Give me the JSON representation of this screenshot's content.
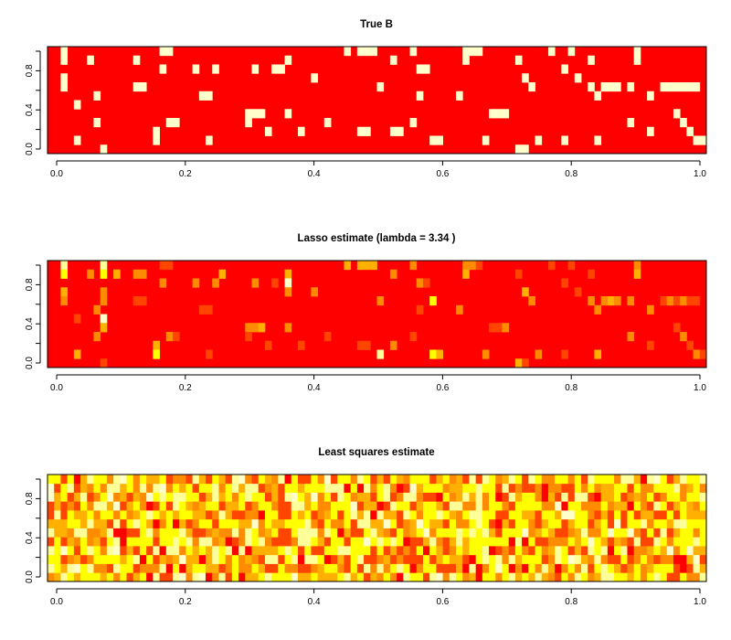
{
  "palette": {
    "red": "#ff0000",
    "orange_red": "#ff4500",
    "orange": "#ff8c00",
    "amber": "#ffb000",
    "yellow": "#ffff00",
    "light_yellow": "#ffff99",
    "cream": "#ffffcc"
  },
  "chart_data": [
    {
      "type": "heatmap",
      "title": "True B",
      "xlim": [
        0,
        1
      ],
      "ylim": [
        0,
        1
      ],
      "x_ticks": [
        "0.0",
        "0.2",
        "0.4",
        "0.6",
        "0.8",
        "1.0"
      ],
      "y_ticks": [
        "0.0",
        "0.4",
        "0.8"
      ],
      "grid": false,
      "color_scale": "heat (red = 0, cream = non-zero)",
      "grid_size": {
        "columns": 100,
        "rows": 12
      },
      "nonzero_cells": [
        [
          2,
          11
        ],
        [
          2,
          10
        ],
        [
          2,
          8
        ],
        [
          2,
          7
        ],
        [
          6,
          10
        ],
        [
          13,
          10
        ],
        [
          17,
          11
        ],
        [
          17,
          9
        ],
        [
          18,
          11
        ],
        [
          22,
          9
        ],
        [
          25,
          9
        ],
        [
          31,
          9
        ],
        [
          34,
          9
        ],
        [
          35,
          9
        ],
        [
          36,
          10
        ],
        [
          4,
          5
        ],
        [
          7,
          6
        ],
        [
          7,
          3
        ],
        [
          13,
          7
        ],
        [
          14,
          7
        ],
        [
          18,
          3
        ],
        [
          19,
          3
        ],
        [
          23,
          6
        ],
        [
          24,
          6
        ],
        [
          30,
          4
        ],
        [
          31,
          4
        ],
        [
          32,
          4
        ],
        [
          36,
          4
        ],
        [
          4,
          1
        ],
        [
          8,
          0
        ],
        [
          16,
          2
        ],
        [
          16,
          1
        ],
        [
          24,
          1
        ],
        [
          30,
          3
        ],
        [
          33,
          2
        ],
        [
          38,
          2
        ],
        [
          45,
          11
        ],
        [
          47,
          11
        ],
        [
          48,
          11
        ],
        [
          49,
          11
        ],
        [
          52,
          10
        ],
        [
          55,
          11
        ],
        [
          56,
          9
        ],
        [
          57,
          9
        ],
        [
          63,
          11
        ],
        [
          63,
          10
        ],
        [
          71,
          10
        ],
        [
          79,
          11
        ],
        [
          89,
          11
        ],
        [
          89,
          10
        ],
        [
          40,
          8
        ],
        [
          50,
          7
        ],
        [
          56,
          6
        ],
        [
          62,
          6
        ],
        [
          67,
          4
        ],
        [
          68,
          4
        ],
        [
          69,
          4
        ],
        [
          72,
          8
        ],
        [
          73,
          7
        ],
        [
          80,
          8
        ],
        [
          82,
          7
        ],
        [
          83,
          6
        ],
        [
          84,
          7
        ],
        [
          85,
          7
        ],
        [
          86,
          7
        ],
        [
          88,
          7
        ],
        [
          91,
          6
        ],
        [
          93,
          7
        ],
        [
          94,
          7
        ],
        [
          95,
          7
        ],
        [
          96,
          7
        ],
        [
          97,
          7
        ],
        [
          98,
          7
        ],
        [
          42,
          3
        ],
        [
          47,
          2
        ],
        [
          48,
          2
        ],
        [
          52,
          2
        ],
        [
          53,
          2
        ],
        [
          55,
          3
        ],
        [
          58,
          1
        ],
        [
          59,
          1
        ],
        [
          66,
          1
        ],
        [
          71,
          0
        ],
        [
          72,
          0
        ],
        [
          74,
          1
        ],
        [
          78,
          1
        ],
        [
          83,
          1
        ],
        [
          88,
          3
        ],
        [
          91,
          2
        ],
        [
          95,
          4
        ],
        [
          96,
          3
        ],
        [
          97,
          2
        ],
        [
          98,
          1
        ],
        [
          99,
          1
        ],
        [
          64,
          11
        ],
        [
          65,
          11
        ],
        [
          76,
          11
        ],
        [
          78,
          9
        ],
        [
          82,
          10
        ]
      ]
    },
    {
      "type": "heatmap",
      "title": "Lasso estimate (lambda = 3.34 )",
      "xlim": [
        0,
        1
      ],
      "ylim": [
        0,
        1
      ],
      "x_ticks": [
        "0.0",
        "0.2",
        "0.4",
        "0.6",
        "0.8",
        "1.0"
      ],
      "y_ticks": [
        "0.0",
        "0.4",
        "0.8"
      ],
      "grid": false,
      "color_scale": "heat (red = 0, yellow/cream = large)",
      "grid_size": {
        "columns": 100,
        "rows": 12
      },
      "nonzero_cells": [
        [
          2,
          11,
          5
        ],
        [
          2,
          10,
          4
        ],
        [
          2,
          8,
          3
        ],
        [
          2,
          7,
          2
        ],
        [
          6,
          10,
          2
        ],
        [
          8,
          11,
          5
        ],
        [
          8,
          10,
          4
        ],
        [
          8,
          8,
          2
        ],
        [
          8,
          7,
          2
        ],
        [
          10,
          10,
          3
        ],
        [
          13,
          10,
          2
        ],
        [
          14,
          10,
          2
        ],
        [
          17,
          11,
          1
        ],
        [
          17,
          9,
          2
        ],
        [
          18,
          11,
          1
        ],
        [
          22,
          9,
          2
        ],
        [
          25,
          9,
          2
        ],
        [
          26,
          10,
          3
        ],
        [
          31,
          9,
          2
        ],
        [
          34,
          9,
          1
        ],
        [
          36,
          10,
          3
        ],
        [
          36,
          9,
          6
        ],
        [
          36,
          8,
          2
        ],
        [
          4,
          5,
          1
        ],
        [
          7,
          6,
          2
        ],
        [
          7,
          3,
          2
        ],
        [
          8,
          5,
          6
        ],
        [
          8,
          4,
          3
        ],
        [
          13,
          7,
          1
        ],
        [
          14,
          7,
          1
        ],
        [
          18,
          3,
          2
        ],
        [
          19,
          3,
          1
        ],
        [
          23,
          6,
          1
        ],
        [
          24,
          6,
          1
        ],
        [
          30,
          4,
          2
        ],
        [
          31,
          4,
          2
        ],
        [
          32,
          4,
          3
        ],
        [
          36,
          4,
          2
        ],
        [
          4,
          1,
          3
        ],
        [
          8,
          0,
          1
        ],
        [
          16,
          2,
          3
        ],
        [
          16,
          1,
          4
        ],
        [
          24,
          1,
          1
        ],
        [
          30,
          3,
          1
        ],
        [
          33,
          2,
          1
        ],
        [
          38,
          2,
          1
        ],
        [
          45,
          11,
          3
        ],
        [
          47,
          11,
          3
        ],
        [
          48,
          11,
          3
        ],
        [
          49,
          11,
          3
        ],
        [
          52,
          10,
          2
        ],
        [
          55,
          11,
          2
        ],
        [
          56,
          9,
          2
        ],
        [
          57,
          9,
          1
        ],
        [
          63,
          11,
          2
        ],
        [
          63,
          10,
          3
        ],
        [
          71,
          10,
          1
        ],
        [
          79,
          11,
          1
        ],
        [
          89,
          11,
          2
        ],
        [
          89,
          10,
          3
        ],
        [
          40,
          8,
          2
        ],
        [
          50,
          7,
          2
        ],
        [
          56,
          6,
          1
        ],
        [
          58,
          7,
          4
        ],
        [
          62,
          6,
          2
        ],
        [
          67,
          4,
          1
        ],
        [
          68,
          4,
          1
        ],
        [
          69,
          4,
          2
        ],
        [
          72,
          8,
          3
        ],
        [
          73,
          7,
          2
        ],
        [
          80,
          8,
          1
        ],
        [
          82,
          7,
          2
        ],
        [
          83,
          6,
          2
        ],
        [
          84,
          7,
          2
        ],
        [
          85,
          7,
          3
        ],
        [
          86,
          7,
          2
        ],
        [
          88,
          7,
          2
        ],
        [
          91,
          6,
          2
        ],
        [
          93,
          7,
          1
        ],
        [
          94,
          7,
          2
        ],
        [
          95,
          7,
          1
        ],
        [
          96,
          7,
          2
        ],
        [
          97,
          7,
          1
        ],
        [
          98,
          7,
          1
        ],
        [
          42,
          3,
          1
        ],
        [
          47,
          2,
          1
        ],
        [
          48,
          2,
          1
        ],
        [
          50,
          1,
          5
        ],
        [
          52,
          2,
          2
        ],
        [
          55,
          3,
          1
        ],
        [
          58,
          1,
          4
        ],
        [
          59,
          1,
          3
        ],
        [
          66,
          1,
          2
        ],
        [
          71,
          0,
          3
        ],
        [
          72,
          0,
          1
        ],
        [
          74,
          1,
          2
        ],
        [
          78,
          1,
          1
        ],
        [
          83,
          1,
          3
        ],
        [
          88,
          3,
          2
        ],
        [
          91,
          2,
          1
        ],
        [
          95,
          4,
          1
        ],
        [
          96,
          3,
          2
        ],
        [
          97,
          2,
          1
        ],
        [
          98,
          1,
          2
        ],
        [
          99,
          1,
          1
        ],
        [
          64,
          11,
          2
        ],
        [
          65,
          11,
          1
        ],
        [
          76,
          11,
          1
        ],
        [
          78,
          9,
          1
        ],
        [
          82,
          10,
          1
        ]
      ]
    },
    {
      "type": "heatmap",
      "title": "Least squares estimate",
      "xlim": [
        0,
        1
      ],
      "ylim": [
        0,
        1
      ],
      "x_ticks": [
        "0.0",
        "0.2",
        "0.4",
        "0.6",
        "0.8",
        "1.0"
      ],
      "y_ticks": [
        "0.0",
        "0.4",
        "0.8"
      ],
      "grid": false,
      "color_scale": "heat (dense, all cells non-zero, orange through yellow)",
      "grid_size": {
        "columns": 100,
        "rows": 12
      },
      "pattern_seed": 7
    }
  ]
}
